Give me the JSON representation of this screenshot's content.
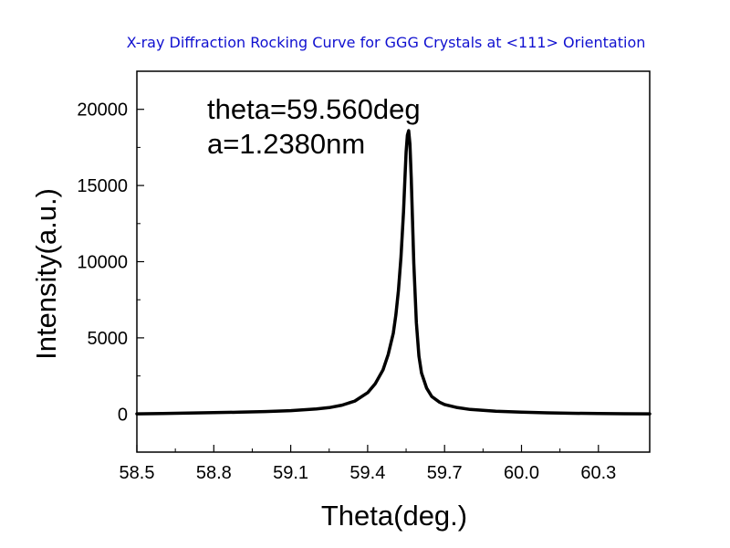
{
  "chart_data": {
    "type": "line",
    "title": "X-ray Diffraction Rocking Curve for GGG Crystals at <111> Orientation",
    "title_color": "#1010d0",
    "xlabel": "Theta(deg.)",
    "ylabel": "Intensity(a.u.)",
    "xlim": [
      58.5,
      60.5
    ],
    "ylim": [
      -2500,
      22500
    ],
    "xticks": [
      58.5,
      58.8,
      59.1,
      59.4,
      59.7,
      60.0,
      60.3
    ],
    "xtick_labels": [
      "58.5",
      "58.8",
      "59.1",
      "59.4",
      "59.7",
      "60.0",
      "60.3"
    ],
    "yticks": [
      0,
      5000,
      10000,
      15000,
      20000
    ],
    "ytick_labels": [
      "0",
      "5000",
      "10000",
      "15000",
      "20000"
    ],
    "grid": false,
    "line_color": "#000000",
    "annotations": [
      {
        "text": "theta=59.560deg"
      },
      {
        "text": "a=1.2380nm"
      }
    ],
    "series": [
      {
        "x": [
          58.5,
          58.6,
          58.7,
          58.8,
          58.9,
          59.0,
          59.1,
          59.2,
          59.25,
          59.3,
          59.35,
          59.4,
          59.43,
          59.46,
          59.48,
          59.5,
          59.51,
          59.52,
          59.53,
          59.54,
          59.545,
          59.55,
          59.555,
          59.56,
          59.565,
          59.57,
          59.575,
          59.58,
          59.59,
          59.6,
          59.61,
          59.63,
          59.65,
          59.68,
          59.7,
          59.75,
          59.8,
          59.9,
          60.0,
          60.1,
          60.2,
          60.3,
          60.4,
          60.5
        ],
        "y": [
          10,
          30,
          60,
          90,
          120,
          160,
          220,
          330,
          420,
          580,
          850,
          1400,
          2000,
          2900,
          3900,
          5300,
          6500,
          8100,
          10300,
          13300,
          15300,
          17200,
          18300,
          18600,
          17700,
          15500,
          12700,
          9900,
          6000,
          3800,
          2700,
          1700,
          1150,
          780,
          620,
          420,
          300,
          180,
          120,
          80,
          50,
          30,
          20,
          10
        ]
      }
    ]
  }
}
